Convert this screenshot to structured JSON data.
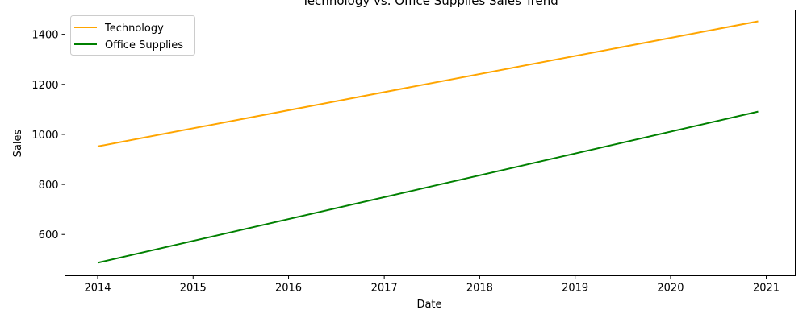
{
  "chart_data": {
    "type": "line",
    "title": "Technology vs. Office Supplies Sales Trend",
    "xlabel": "Date",
    "ylabel": "Sales",
    "x": [
      "2014-01-01",
      "2020-12-01"
    ],
    "series": [
      {
        "name": "Technology",
        "color": "#ffa500",
        "values": [
          952,
          1452
        ]
      },
      {
        "name": "Office Supplies",
        "color": "#008000",
        "values": [
          487,
          1091
        ]
      }
    ],
    "xlim": [
      "2013-08-29",
      "2021-04-22"
    ],
    "ylim": [
      435,
      1497
    ],
    "xticks": [
      {
        "date": "2014-01-01",
        "label": "2014"
      },
      {
        "date": "2015-01-01",
        "label": "2015"
      },
      {
        "date": "2016-01-01",
        "label": "2016"
      },
      {
        "date": "2017-01-01",
        "label": "2017"
      },
      {
        "date": "2018-01-01",
        "label": "2018"
      },
      {
        "date": "2019-01-01",
        "label": "2019"
      },
      {
        "date": "2020-01-01",
        "label": "2020"
      },
      {
        "date": "2021-01-01",
        "label": "2021"
      }
    ],
    "yticks": [
      600,
      800,
      1000,
      1200,
      1400
    ],
    "grid": false,
    "legend": "top-left"
  }
}
